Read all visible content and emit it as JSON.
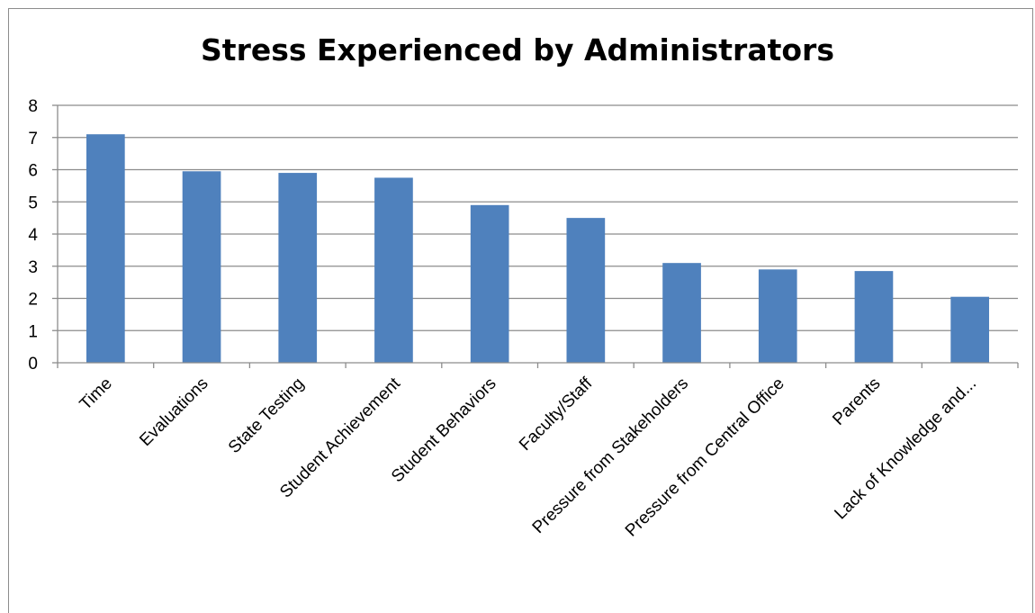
{
  "chart_data": {
    "type": "bar",
    "title": "Stress Experienced by Administrators",
    "categories": [
      "Time",
      "Evaluations",
      "State Testing",
      "Student Achievement",
      "Student Behaviors",
      "Faculty/Staff",
      "Pressure from Stakeholders",
      "Pressure from Central Office",
      "Parents",
      "Lack of Knowledge and..."
    ],
    "values": [
      7.1,
      5.95,
      5.9,
      5.75,
      4.9,
      4.5,
      3.1,
      2.9,
      2.85,
      2.05
    ],
    "ylim": [
      0,
      8
    ],
    "yticks": [
      "0",
      "1",
      "2",
      "3",
      "4",
      "5",
      "6",
      "7",
      "8"
    ],
    "grid": true,
    "legend": "none",
    "bar_color": "#4f81bd"
  }
}
